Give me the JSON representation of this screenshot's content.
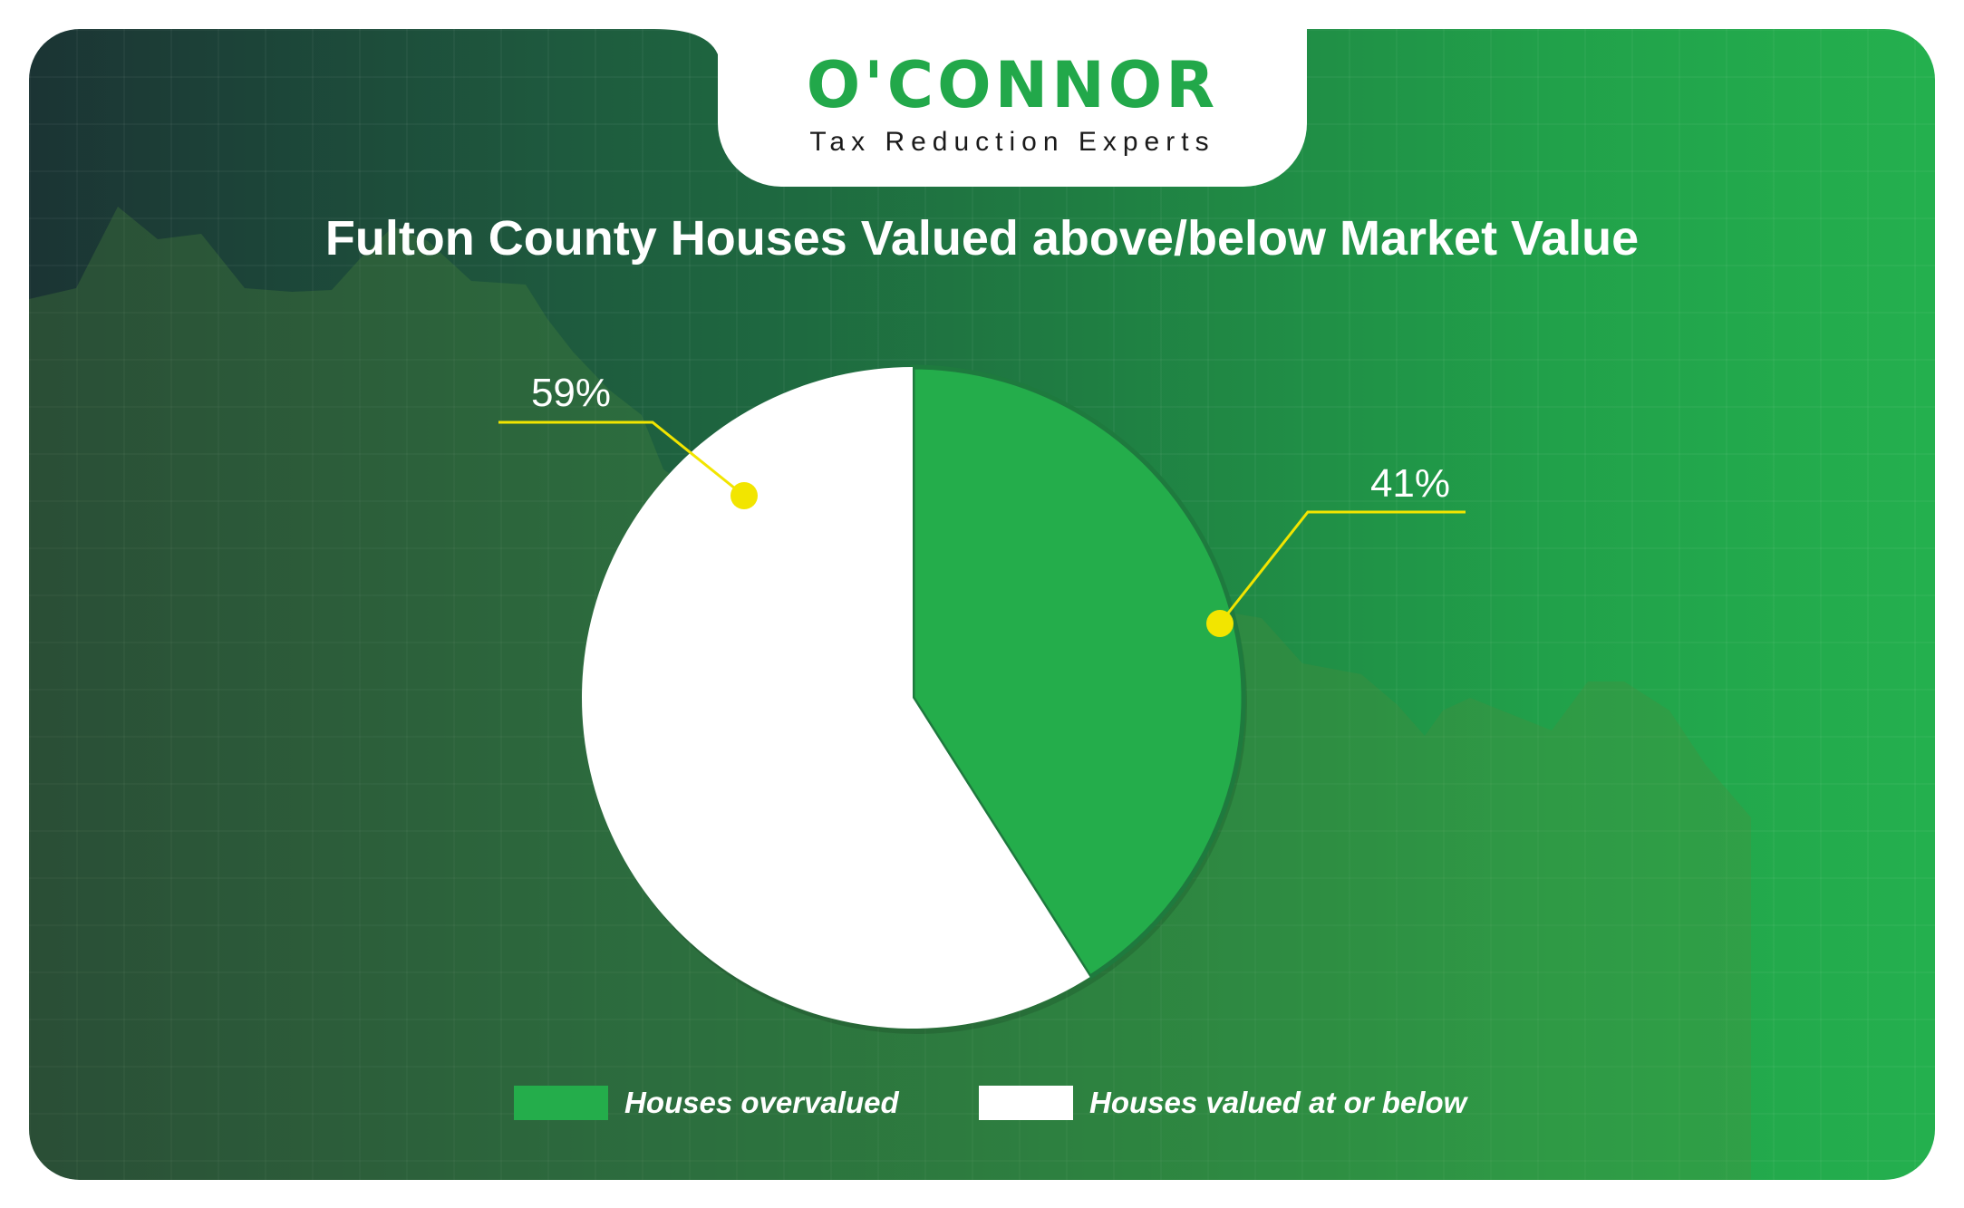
{
  "brand": {
    "name": "O'CONNOR",
    "tagline": "Tax Reduction Experts",
    "color": "#22a84a"
  },
  "chart_data": {
    "type": "pie",
    "title": "Fulton County Houses Valued above/below Market Value",
    "categories": [
      "Houses overvalued",
      "Houses valued at or below"
    ],
    "values": [
      41,
      59
    ],
    "labels": [
      "41%",
      "59%"
    ],
    "colors": [
      "#24ad4b",
      "#ffffff"
    ],
    "legend_position": "bottom",
    "callout_color": "#f2e500"
  }
}
